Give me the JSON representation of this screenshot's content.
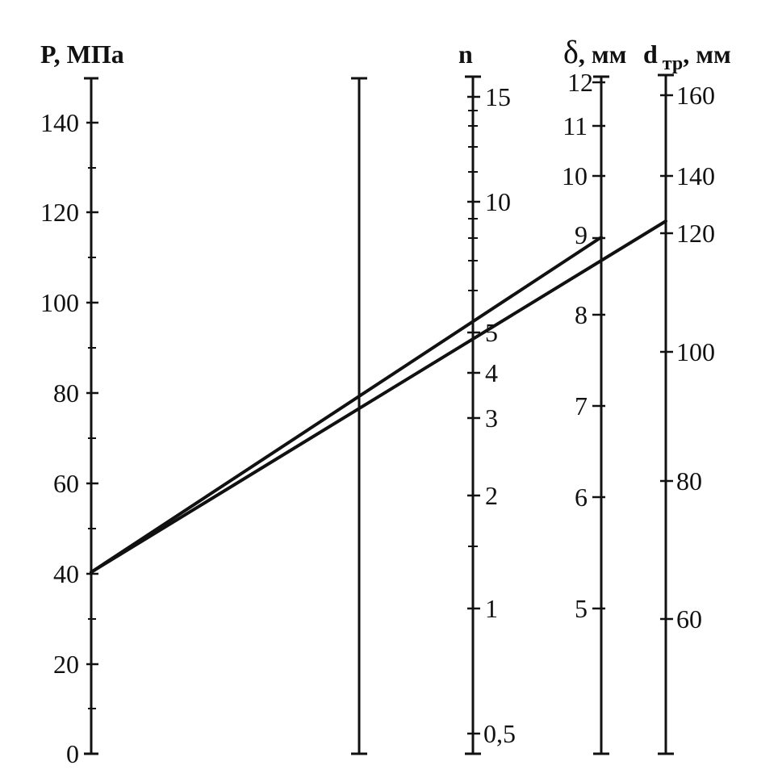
{
  "axes": {
    "p": {
      "title": "P, МПа",
      "labels": [
        "0",
        "20",
        "40",
        "60",
        "80",
        "100",
        "120",
        "140"
      ]
    },
    "n": {
      "title": "n",
      "labels": [
        "0,5",
        "1",
        "2",
        "3",
        "4",
        "5",
        "10",
        "15"
      ]
    },
    "delta": {
      "title_symbol": "δ",
      "title_unit": ", мм",
      "labels": [
        "5",
        "6",
        "7",
        "8",
        "9",
        "10",
        "11",
        "12"
      ]
    },
    "dtr": {
      "title_main": "d",
      "title_sub": "тр",
      "title_unit": ", мм",
      "labels": [
        "60",
        "80",
        "100",
        "120",
        "140",
        "160"
      ]
    }
  },
  "key_lines": [
    {
      "from": "P = 35 МПа",
      "to": "δ = 9 мм"
    },
    {
      "from": "P = 35 МПа",
      "to": "d тр = 123 мм"
    }
  ]
}
